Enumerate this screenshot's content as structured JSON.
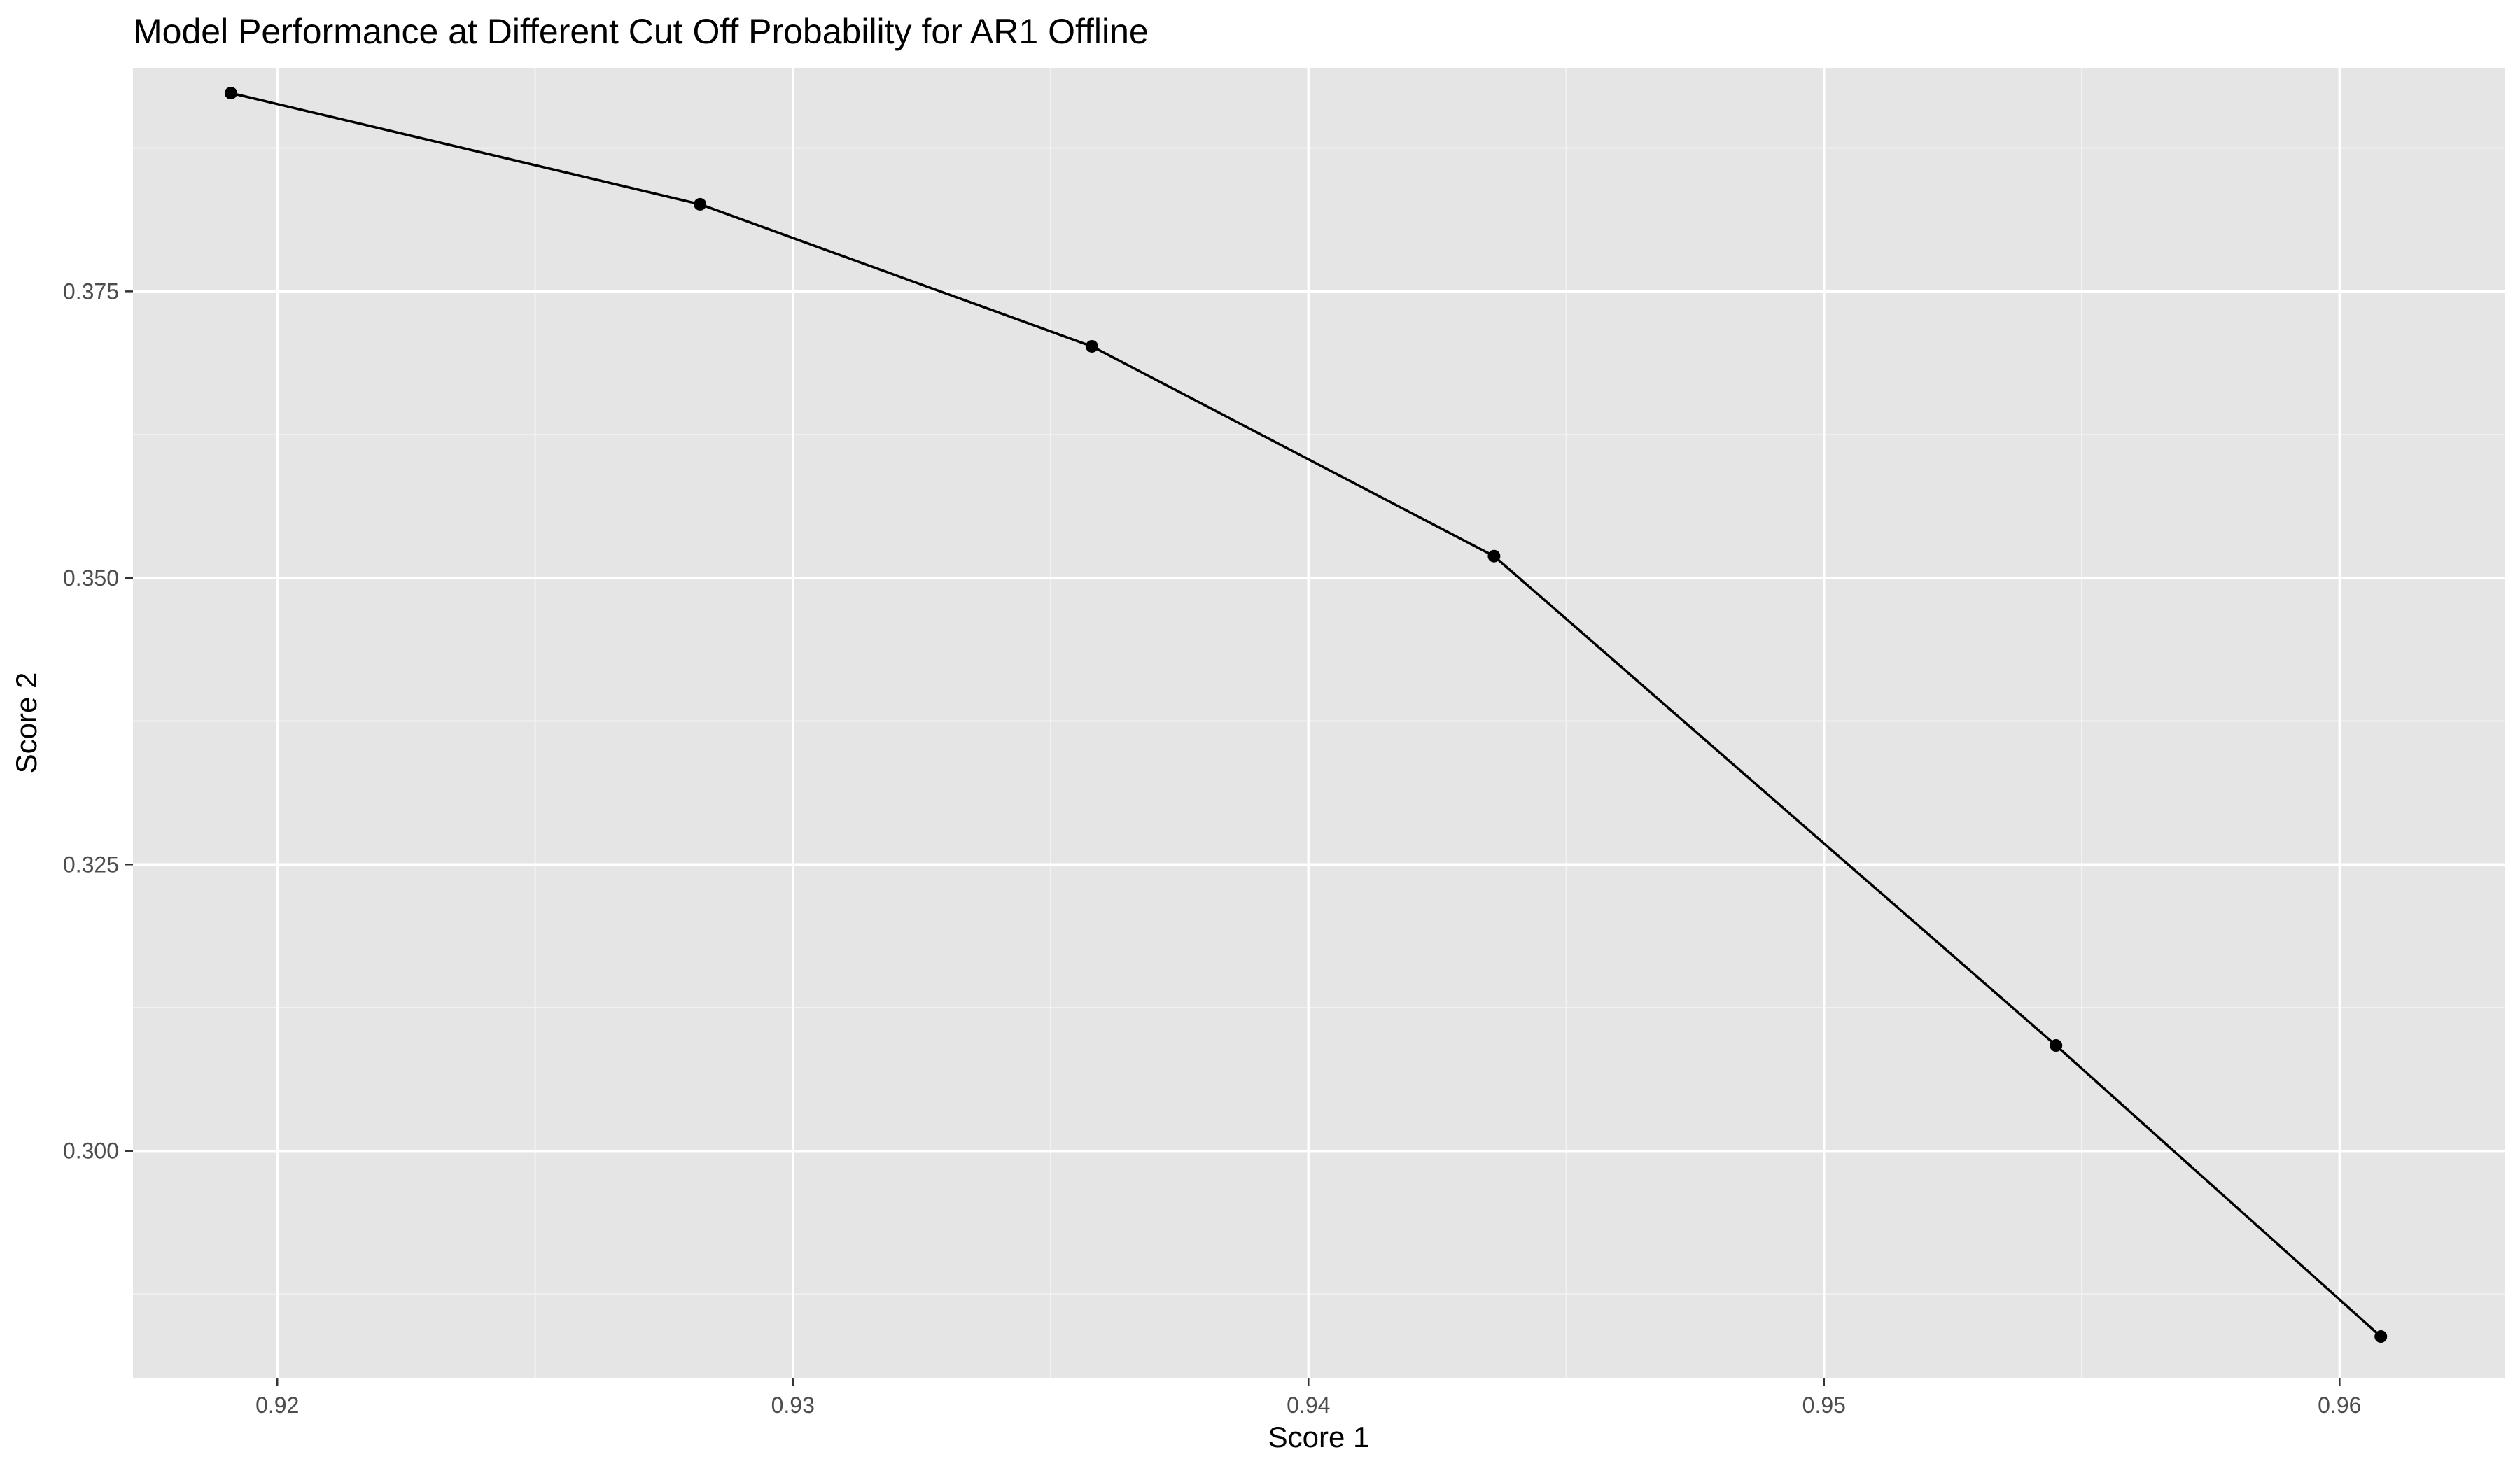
{
  "chart_data": {
    "type": "line",
    "title": "Model Performance at Different Cut Off Probability for AR1 Offline",
    "xlabel": "Score 1",
    "ylabel": "Score 2",
    "xlim": [
      0.9172,
      0.9632
    ],
    "ylim": [
      0.2802,
      0.3945
    ],
    "x_ticks": [
      0.92,
      0.93,
      0.94,
      0.95,
      0.96
    ],
    "x_tick_labels": [
      "0.92",
      "0.93",
      "0.94",
      "0.95",
      "0.96"
    ],
    "x_minor_ticks": [
      0.925,
      0.935,
      0.945,
      0.955
    ],
    "y_ticks": [
      0.3,
      0.325,
      0.35,
      0.375
    ],
    "y_tick_labels": [
      "0.300",
      "0.325",
      "0.350",
      "0.375"
    ],
    "y_minor_ticks": [
      0.2875,
      0.3125,
      0.3375,
      0.3625,
      0.3875
    ],
    "grid": true,
    "series": [
      {
        "x": [
          0.9191,
          0.9282,
          0.9358,
          0.9436,
          0.9545,
          0.9608
        ],
        "y": [
          0.3923,
          0.3826,
          0.3702,
          0.3519,
          0.3092,
          0.2838
        ]
      }
    ],
    "colors": {
      "panel_background": "#e5e5e5",
      "grid_major": "#ffffff",
      "grid_minor": "#f2f2f2",
      "line": "#000000",
      "point": "#000000",
      "tick_text": "#4d4d4d",
      "tick_mark": "#333333"
    }
  }
}
